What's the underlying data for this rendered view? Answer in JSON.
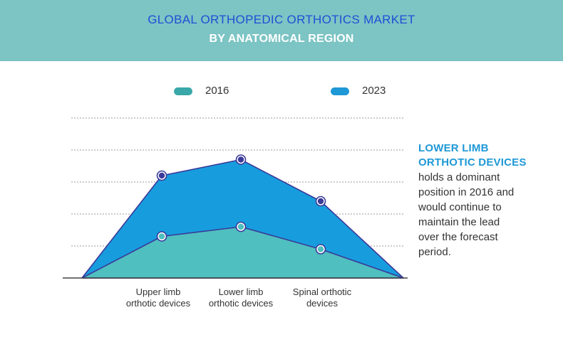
{
  "header": {
    "title_line1": "GLOBAL ORTHOPEDIC ORTHOTICS MARKET",
    "title_line2": "BY ANATOMICAL REGION"
  },
  "colors": {
    "header_bg": "#7dc4c4",
    "title_blue": "#1e4fd6",
    "series_2016": "#4fbfbf",
    "series_2023": "#179ddd",
    "outline": "#3a3a9a",
    "annotation_accent": "#1e98d6"
  },
  "annotation": {
    "heading_line1": "LOWER LIMB",
    "heading_line2": "ORTHOTIC DEVICES",
    "body_lines": [
      "holds a dominant",
      "position in 2016 and",
      "would continue to",
      "maintain the lead",
      "over the forecast",
      "period."
    ]
  },
  "chart_data": {
    "type": "area",
    "categories": [
      "Upper limb\northotic devices",
      "Lower limb\northotic devices",
      "Spinal orthotic\ndevices"
    ],
    "category_lines": [
      [
        "Upper limb",
        "orthotic devices"
      ],
      [
        "Lower limb",
        "orthotic devices"
      ],
      [
        "Spinal orthotic",
        "devices"
      ]
    ],
    "series": [
      {
        "name": "2016",
        "values": [
          1.3,
          1.6,
          0.9
        ]
      },
      {
        "name": "2023",
        "values": [
          3.2,
          3.7,
          2.4
        ]
      }
    ],
    "endpoints_value": 0,
    "ylim": [
      0,
      5
    ],
    "grid": true,
    "legend_position": "top"
  }
}
